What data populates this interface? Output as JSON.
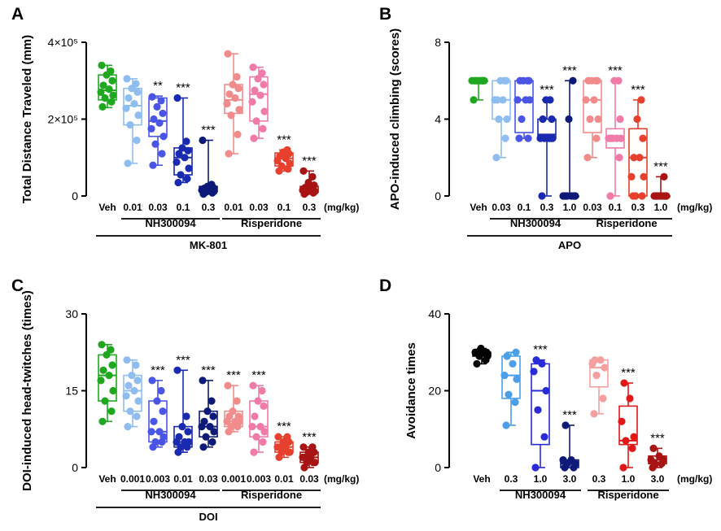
{
  "figure": {
    "unit_label": "(mg/kg)",
    "significance": "***"
  },
  "chart_data": [
    {
      "type": "box",
      "panel_label": "A",
      "ylabel": "Total Distance Traveled (mm)",
      "yticks": [
        "0",
        "2×10⁵",
        "4×10⁵"
      ],
      "ytick_values": [
        0,
        200000,
        400000
      ],
      "ylim": [
        0,
        400000
      ],
      "groups": [
        {
          "name": "NH300094",
          "start": 1,
          "end": 4
        },
        {
          "name": "Risperidone",
          "start": 5,
          "end": 8
        }
      ],
      "overall": "MK-801",
      "series": [
        {
          "name": "Veh",
          "color": "#1fa81f",
          "dose": "Veh",
          "min": 230000,
          "q1": 250000,
          "median": 275000,
          "q3": 315000,
          "max": 340000,
          "points": [
            232000,
            245000,
            255000,
            262000,
            270000,
            278000,
            288000,
            300000,
            315000,
            325000,
            340000
          ],
          "sig": ""
        },
        {
          "name": "NH300094 0.01",
          "color": "#8fbdef",
          "dose": "0.01",
          "min": 85000,
          "q1": 185000,
          "median": 235000,
          "q3": 280000,
          "max": 305000,
          "points": [
            85000,
            145000,
            185000,
            210000,
            228000,
            240000,
            255000,
            270000,
            280000,
            292000,
            305000
          ],
          "sig": ""
        },
        {
          "name": "NH300094 0.03",
          "color": "#4a55e6",
          "dose": "0.03",
          "min": 80000,
          "q1": 155000,
          "median": 195000,
          "q3": 255000,
          "max": 260000,
          "points": [
            80000,
            110000,
            135000,
            155000,
            175000,
            190000,
            200000,
            215000,
            232000,
            248000,
            258000
          ],
          "sig": "**"
        },
        {
          "name": "NH300094 0.1",
          "color": "#1a2ab0",
          "dose": "0.1",
          "min": 35000,
          "q1": 55000,
          "median": 100000,
          "q3": 125000,
          "max": 255000,
          "points": [
            35000,
            45000,
            55000,
            72000,
            88000,
            100000,
            110000,
            118000,
            125000,
            142000,
            255000
          ],
          "sig": "***"
        },
        {
          "name": "NH300094 0.3",
          "color": "#0d1a78",
          "dose": "0.3",
          "min": 5000,
          "q1": 12000,
          "median": 18000,
          "q3": 25000,
          "max": 145000,
          "points": [
            5000,
            8000,
            10000,
            12000,
            15000,
            18000,
            20000,
            22000,
            25000,
            30000,
            145000
          ],
          "sig": "***"
        },
        {
          "name": "Risperidone 0.01",
          "color": "#f28b8b",
          "dose": "0.01",
          "min": 110000,
          "q1": 215000,
          "median": 250000,
          "q3": 290000,
          "max": 370000,
          "points": [
            110000,
            160000,
            210000,
            225000,
            240000,
            255000,
            265000,
            280000,
            290000,
            310000,
            370000
          ],
          "sig": ""
        },
        {
          "name": "Risperidone 0.03",
          "color": "#f07aa8",
          "dose": "0.03",
          "min": 150000,
          "q1": 195000,
          "median": 265000,
          "q3": 310000,
          "max": 335000,
          "points": [
            150000,
            175000,
            195000,
            220000,
            245000,
            262000,
            275000,
            290000,
            305000,
            320000,
            335000
          ],
          "sig": ""
        },
        {
          "name": "Risperidone 0.1",
          "color": "#e8402e",
          "dose": "0.1",
          "min": 65000,
          "q1": 78000,
          "median": 98000,
          "q3": 112000,
          "max": 120000,
          "points": [
            65000,
            70000,
            78000,
            85000,
            92000,
            98000,
            104000,
            110000,
            114000,
            120000
          ],
          "sig": "***"
        },
        {
          "name": "Risperidone 0.3",
          "color": "#a81414",
          "dose": "0.3",
          "min": 5000,
          "q1": 10000,
          "median": 15000,
          "q3": 25000,
          "max": 65000,
          "points": [
            5000,
            8000,
            10000,
            12000,
            15000,
            18000,
            22000,
            28000,
            35000,
            50000,
            65000
          ],
          "sig": "***"
        }
      ]
    },
    {
      "type": "box",
      "panel_label": "B",
      "ylabel": "APO-induced climbing (scores)",
      "yticks": [
        "0",
        "4",
        "8"
      ],
      "ytick_values": [
        0,
        4,
        8
      ],
      "ylim": [
        0,
        8
      ],
      "groups": [
        {
          "name": "NH300094",
          "start": 1,
          "end": 4
        },
        {
          "name": "Risperidone",
          "start": 5,
          "end": 8
        }
      ],
      "overall": "APO",
      "series": [
        {
          "name": "Veh",
          "color": "#1fa81f",
          "dose": "Veh",
          "min": 5,
          "q1": 6,
          "median": 6,
          "q3": 6,
          "max": 6,
          "points": [
            5,
            6,
            6,
            6,
            6,
            6,
            6,
            6,
            6,
            6
          ],
          "sig": ""
        },
        {
          "name": "NH300094 0.03",
          "color": "#8fbdef",
          "dose": "0.03",
          "min": 2,
          "q1": 4,
          "median": 5,
          "q3": 6,
          "max": 6,
          "points": [
            2,
            3,
            4,
            4,
            5,
            5,
            5,
            6,
            6,
            6
          ],
          "sig": ""
        },
        {
          "name": "NH300094 0.1",
          "color": "#4a55e6",
          "dose": "0.1",
          "min": 3,
          "q1": 3.3,
          "median": 5,
          "q3": 6,
          "max": 6,
          "points": [
            3,
            3,
            4,
            5,
            5,
            5,
            6,
            6,
            6,
            6
          ],
          "sig": ""
        },
        {
          "name": "NH300094 0.3",
          "color": "#1a2ab0",
          "dose": "0.3",
          "min": 0,
          "q1": 3,
          "median": 3.2,
          "q3": 4,
          "max": 5,
          "points": [
            0,
            3,
            3,
            3,
            3,
            3,
            4,
            4,
            5,
            5
          ],
          "sig": "***"
        },
        {
          "name": "NH300094 1.0",
          "color": "#0d1a78",
          "dose": "1.0",
          "min": 0,
          "q1": 0,
          "median": 0,
          "q3": 0,
          "max": 6,
          "points": [
            0,
            0,
            0,
            0,
            0,
            0,
            0,
            0,
            4,
            6
          ],
          "sig": "***"
        },
        {
          "name": "Risperidone 0.03",
          "color": "#f28b8b",
          "dose": "0.03",
          "min": 2,
          "q1": 3.3,
          "median": 5,
          "q3": 6,
          "max": 6,
          "points": [
            2,
            3,
            4,
            4,
            5,
            5,
            6,
            6,
            6,
            6
          ],
          "sig": ""
        },
        {
          "name": "Risperidone 0.1",
          "color": "#f07aa8",
          "dose": "0.1",
          "min": 0,
          "q1": 2.5,
          "median": 3,
          "q3": 3.5,
          "max": 6,
          "points": [
            0,
            2,
            3,
            3,
            3,
            3,
            3,
            4,
            6,
            6
          ],
          "sig": "***"
        },
        {
          "name": "Risperidone 0.3",
          "color": "#e8402e",
          "dose": "0.3",
          "min": 0,
          "q1": 0,
          "median": 2,
          "q3": 3.5,
          "max": 5,
          "points": [
            0,
            0,
            0,
            1,
            1,
            2,
            2,
            3,
            4,
            5
          ],
          "sig": "***"
        },
        {
          "name": "Risperidone 1.0",
          "color": "#a81414",
          "dose": "1.0",
          "min": 0,
          "q1": 0,
          "median": 0,
          "q3": 0,
          "max": 1,
          "points": [
            0,
            0,
            0,
            0,
            0,
            0,
            0,
            0,
            0,
            1
          ],
          "sig": "***"
        }
      ]
    },
    {
      "type": "box",
      "panel_label": "C",
      "ylabel": "DOI-induced head-twitches (times)",
      "yticks": [
        "0",
        "15",
        "30"
      ],
      "ytick_values": [
        0,
        15,
        30
      ],
      "ylim": [
        0,
        30
      ],
      "groups": [
        {
          "name": "NH300094",
          "start": 1,
          "end": 4
        },
        {
          "name": "Risperidone",
          "start": 5,
          "end": 8
        }
      ],
      "overall": "DOI",
      "series": [
        {
          "name": "Veh",
          "color": "#1fa81f",
          "dose": "Veh",
          "min": 9,
          "q1": 13,
          "median": 18,
          "q3": 22,
          "max": 24,
          "points": [
            9,
            11,
            13,
            15,
            17,
            18,
            19,
            20,
            22,
            23,
            24
          ],
          "sig": ""
        },
        {
          "name": "NH300094 0.001",
          "color": "#8fbdef",
          "dose": "0.001",
          "min": 8,
          "q1": 11,
          "median": 15,
          "q3": 18,
          "max": 21,
          "points": [
            8,
            10,
            11,
            13,
            14,
            15,
            16,
            17,
            18,
            20,
            21
          ],
          "sig": ""
        },
        {
          "name": "NH300094 0.003",
          "color": "#4a55e6",
          "dose": "0.003",
          "min": 4,
          "q1": 5,
          "median": 7,
          "q3": 13,
          "max": 17,
          "points": [
            4,
            5,
            5,
            6,
            7,
            7,
            9,
            11,
            13,
            15,
            17
          ],
          "sig": "***"
        },
        {
          "name": "NH300094 0.01",
          "color": "#1a2ab0",
          "dose": "0.01",
          "min": 3,
          "q1": 4,
          "median": 5,
          "q3": 8,
          "max": 19,
          "points": [
            3,
            4,
            4,
            5,
            5,
            5,
            6,
            7,
            8,
            10,
            19
          ],
          "sig": "***"
        },
        {
          "name": "NH300094 0.03",
          "color": "#0d1a78",
          "dose": "0.03",
          "min": 4,
          "q1": 6,
          "median": 8,
          "q3": 11,
          "max": 17,
          "points": [
            4,
            5,
            6,
            7,
            8,
            8,
            9,
            10,
            11,
            13,
            17
          ],
          "sig": "***"
        },
        {
          "name": "Risperidone 0.001",
          "color": "#f28b8b",
          "dose": "0.001",
          "min": 7,
          "q1": 8,
          "median": 9,
          "q3": 11,
          "max": 16,
          "points": [
            7,
            8,
            8,
            9,
            9,
            9,
            10,
            10,
            11,
            13,
            16
          ],
          "sig": "***"
        },
        {
          "name": "Risperidone 0.003",
          "color": "#f07aa8",
          "dose": "0.003",
          "min": 3,
          "q1": 6,
          "median": 8,
          "q3": 13,
          "max": 16,
          "points": [
            3,
            5,
            6,
            7,
            8,
            8,
            10,
            12,
            13,
            15,
            16
          ],
          "sig": "***"
        },
        {
          "name": "Risperidone 0.01",
          "color": "#e8402e",
          "dose": "0.01",
          "min": 2,
          "q1": 3,
          "median": 4,
          "q3": 5,
          "max": 6,
          "points": [
            2,
            3,
            3,
            3,
            4,
            4,
            4,
            5,
            5,
            6,
            6
          ],
          "sig": "***"
        },
        {
          "name": "Risperidone 0.03",
          "color": "#a81414",
          "dose": "0.03",
          "min": 0,
          "q1": 1,
          "median": 2,
          "q3": 3,
          "max": 4,
          "points": [
            0,
            1,
            1,
            1,
            2,
            2,
            2,
            3,
            3,
            4,
            4
          ],
          "sig": "***"
        }
      ]
    },
    {
      "type": "box",
      "panel_label": "D",
      "ylabel": "Avoidance times",
      "yticks": [
        "0",
        "20",
        "40"
      ],
      "ytick_values": [
        0,
        20,
        40
      ],
      "ylim": [
        0,
        40
      ],
      "groups": [
        {
          "name": "NH300094",
          "start": 1,
          "end": 3
        },
        {
          "name": "Risperidone",
          "start": 4,
          "end": 6
        }
      ],
      "overall": "",
      "series": [
        {
          "name": "Veh",
          "color": "#000000",
          "dose": "Veh",
          "min": 27,
          "q1": 29,
          "median": 30,
          "q3": 30,
          "max": 31,
          "points": [
            27,
            28,
            29,
            29,
            30,
            30,
            30,
            30,
            31
          ],
          "sig": ""
        },
        {
          "name": "NH300094 0.3",
          "color": "#4a9fe8",
          "dose": "0.3",
          "min": 11,
          "q1": 18,
          "median": 24,
          "q3": 29,
          "max": 30,
          "points": [
            11,
            17,
            19,
            23,
            24,
            27,
            29,
            30
          ],
          "sig": ""
        },
        {
          "name": "NH300094 1.0",
          "color": "#2a2ad8",
          "dose": "1.0",
          "min": 0,
          "q1": 6,
          "median": 20,
          "q3": 27,
          "max": 28,
          "points": [
            0,
            8,
            15,
            20,
            25,
            27,
            28
          ],
          "sig": "***"
        },
        {
          "name": "NH300094 3.0",
          "color": "#0d1a78",
          "dose": "3.0",
          "min": 0,
          "q1": 0,
          "median": 1,
          "q3": 2,
          "max": 11,
          "points": [
            0,
            0,
            1,
            1,
            2,
            2,
            11
          ],
          "sig": "***"
        },
        {
          "name": "Risperidone 0.3",
          "color": "#f5a0a0",
          "dose": "0.3",
          "min": 14,
          "q1": 21,
          "median": 26,
          "q3": 28,
          "max": 28,
          "points": [
            14,
            18,
            24,
            26,
            27,
            28,
            28
          ],
          "sig": ""
        },
        {
          "name": "Risperidone 1.0",
          "color": "#e01818",
          "dose": "1.0",
          "min": 0,
          "q1": 6,
          "median": 7,
          "q3": 16,
          "max": 22,
          "points": [
            0,
            5,
            7,
            8,
            12,
            18,
            22
          ],
          "sig": "***"
        },
        {
          "name": "Risperidone 3.0",
          "color": "#a81414",
          "dose": "3.0",
          "min": 0,
          "q1": 1,
          "median": 2,
          "q3": 3,
          "max": 5,
          "points": [
            0,
            1,
            1,
            2,
            2,
            3,
            5
          ],
          "sig": "***"
        }
      ]
    }
  ]
}
